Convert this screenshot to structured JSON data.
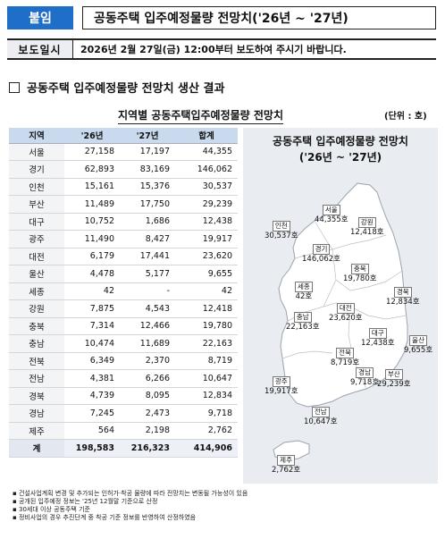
{
  "header": {
    "badge": "붙임",
    "title": "공동주택 입주예정물량 전망치('26년 ~ '27년)"
  },
  "release": {
    "label": "보도일시",
    "text": "2026년 2월 27일(금) 12:00부터 보도하여 주시기 바랍니다."
  },
  "section_title": "공동주택 입주예정물량 전망치 생산 결과",
  "table_title": "지역별 공동주택입주예정물량 전망치",
  "unit": "(단위 : 호)",
  "columns": [
    "지역",
    "'26년",
    "'27년",
    "합계"
  ],
  "rows": [
    {
      "region": "서울",
      "y26": "27,158",
      "y27": "17,197",
      "sum": "44,355"
    },
    {
      "region": "경기",
      "y26": "62,893",
      "y27": "83,169",
      "sum": "146,062"
    },
    {
      "region": "인천",
      "y26": "15,161",
      "y27": "15,376",
      "sum": "30,537"
    },
    {
      "region": "부산",
      "y26": "11,489",
      "y27": "17,750",
      "sum": "29,239"
    },
    {
      "region": "대구",
      "y26": "10,752",
      "y27": "1,686",
      "sum": "12,438"
    },
    {
      "region": "광주",
      "y26": "11,490",
      "y27": "8,427",
      "sum": "19,917"
    },
    {
      "region": "대전",
      "y26": "6,179",
      "y27": "17,441",
      "sum": "23,620"
    },
    {
      "region": "울산",
      "y26": "4,478",
      "y27": "5,177",
      "sum": "9,655"
    },
    {
      "region": "세종",
      "y26": "42",
      "y27": "-",
      "sum": "42"
    },
    {
      "region": "강원",
      "y26": "7,875",
      "y27": "4,543",
      "sum": "12,418"
    },
    {
      "region": "충북",
      "y26": "7,314",
      "y27": "12,466",
      "sum": "19,780"
    },
    {
      "region": "충남",
      "y26": "10,474",
      "y27": "11,689",
      "sum": "22,163"
    },
    {
      "region": "전북",
      "y26": "6,349",
      "y27": "2,370",
      "sum": "8,719"
    },
    {
      "region": "전남",
      "y26": "4,381",
      "y27": "6,266",
      "sum": "10,647"
    },
    {
      "region": "경북",
      "y26": "4,739",
      "y27": "8,095",
      "sum": "12,834"
    },
    {
      "region": "경남",
      "y26": "7,245",
      "y27": "2,473",
      "sum": "9,718"
    },
    {
      "region": "제주",
      "y26": "564",
      "y27": "2,198",
      "sum": "2,762"
    }
  ],
  "total": {
    "region": "계",
    "y26": "198,583",
    "y27": "216,323",
    "sum": "414,906"
  },
  "map": {
    "title1": "공동주택 입주예정물량 전망치",
    "title2": "('26년 ~ '27년)",
    "labels": [
      {
        "name": "서울",
        "value": "44,355호"
      },
      {
        "name": "인천",
        "value": "30,537호"
      },
      {
        "name": "강원",
        "value": "12,418호"
      },
      {
        "name": "경기",
        "value": "146,062호"
      },
      {
        "name": "충북",
        "value": "19,780호"
      },
      {
        "name": "세종",
        "value": "42호"
      },
      {
        "name": "대전",
        "value": "23,620호"
      },
      {
        "name": "경북",
        "value": "12,834호"
      },
      {
        "name": "충남",
        "value": "22,163호"
      },
      {
        "name": "대구",
        "value": "12,438호"
      },
      {
        "name": "울산",
        "value": "9,655호"
      },
      {
        "name": "전북",
        "value": "8,719호"
      },
      {
        "name": "경남",
        "value": "9,718호"
      },
      {
        "name": "부산",
        "value": "29,239호"
      },
      {
        "name": "광주",
        "value": "19,917호"
      },
      {
        "name": "전남",
        "value": "10,647호"
      },
      {
        "name": "제주",
        "value": "2,762호"
      }
    ]
  },
  "notes": [
    "건설사업계획 변경 및 추가되는 인허가·착공 물량에 따라 전망치는 변동될 가능성이 있음",
    "공개된 입주예정 정보는 '25년 12월말 기준으로 산정",
    "30세대 이상 공동주택 기준",
    "정비사업의 경우 추진단계 중 착공 기준 정보를 반영하여 산정하였음"
  ]
}
